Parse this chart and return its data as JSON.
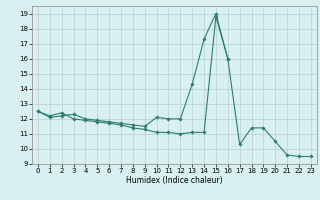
{
  "xlabel": "Humidex (Indice chaleur)",
  "x_values": [
    0,
    1,
    2,
    3,
    4,
    5,
    6,
    7,
    8,
    9,
    10,
    11,
    12,
    13,
    14,
    15,
    16,
    17,
    18,
    19,
    20,
    21,
    22,
    23
  ],
  "line1_y": [
    12.5,
    12.2,
    12.4,
    12.0,
    11.9,
    11.8,
    11.7,
    11.6,
    11.4,
    11.3,
    11.1,
    11.1,
    11.0,
    11.1,
    11.1,
    18.8,
    16.0,
    10.3,
    11.4,
    11.4,
    10.5,
    9.6,
    9.5,
    9.5
  ],
  "line2_y": [
    12.5,
    12.1,
    12.2,
    12.3,
    12.0,
    11.9,
    11.8,
    11.7,
    11.6,
    11.5,
    12.1,
    12.0,
    12.0,
    14.3,
    17.3,
    19.0,
    16.0,
    null,
    null,
    null,
    null,
    null,
    null,
    null
  ],
  "line_color": "#2e7d6e",
  "bg_color": "#d8f0f0",
  "grid_color": "#b8d0d0",
  "ylim": [
    9,
    19.5
  ],
  "xlim": [
    -0.5,
    23.5
  ],
  "yticks": [
    9,
    10,
    11,
    12,
    13,
    14,
    15,
    16,
    17,
    18,
    19
  ],
  "xticks": [
    0,
    1,
    2,
    3,
    4,
    5,
    6,
    7,
    8,
    9,
    10,
    11,
    12,
    13,
    14,
    15,
    16,
    17,
    18,
    19,
    20,
    21,
    22,
    23
  ]
}
